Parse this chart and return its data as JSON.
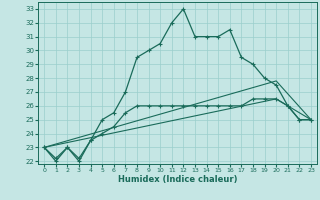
{
  "xlabel": "Humidex (Indice chaleur)",
  "bg_color": "#c5e6e4",
  "grid_color": "#9bcfcc",
  "line_color": "#1a6b5a",
  "ylim": [
    21.8,
    33.5
  ],
  "xlim": [
    -0.5,
    23.5
  ],
  "yticks": [
    22,
    23,
    24,
    25,
    26,
    27,
    28,
    29,
    30,
    31,
    32,
    33
  ],
  "xticks": [
    0,
    1,
    2,
    3,
    4,
    5,
    6,
    7,
    8,
    9,
    10,
    11,
    12,
    13,
    14,
    15,
    16,
    17,
    18,
    19,
    20,
    21,
    22,
    23
  ],
  "line1_x": [
    0,
    1,
    2,
    3,
    4,
    5,
    6,
    7,
    8,
    9,
    10,
    11,
    12,
    13,
    14,
    15,
    16,
    17,
    18,
    19,
    20,
    21,
    22,
    23
  ],
  "line1_y": [
    23,
    22,
    23,
    22,
    23.5,
    25,
    25.5,
    27,
    29.5,
    30,
    30.5,
    32,
    33,
    31,
    31,
    31,
    31.5,
    29.5,
    29,
    28,
    27.5,
    26,
    25,
    25
  ],
  "line2_x": [
    0,
    1,
    2,
    3,
    4,
    5,
    6,
    7,
    8,
    9,
    10,
    11,
    12,
    13,
    14,
    15,
    16,
    17,
    18,
    19,
    20,
    21,
    22,
    23
  ],
  "line2_y": [
    23,
    22.2,
    23,
    22.2,
    23.5,
    24,
    24.5,
    25.5,
    26,
    26,
    26,
    26,
    26,
    26,
    26,
    26,
    26,
    26,
    26.5,
    26.5,
    26.5,
    26,
    25,
    25
  ],
  "line3_x": [
    0,
    20,
    23
  ],
  "line3_y": [
    23,
    27.8,
    25
  ],
  "line4_x": [
    0,
    20,
    23
  ],
  "line4_y": [
    23,
    26.5,
    25
  ]
}
